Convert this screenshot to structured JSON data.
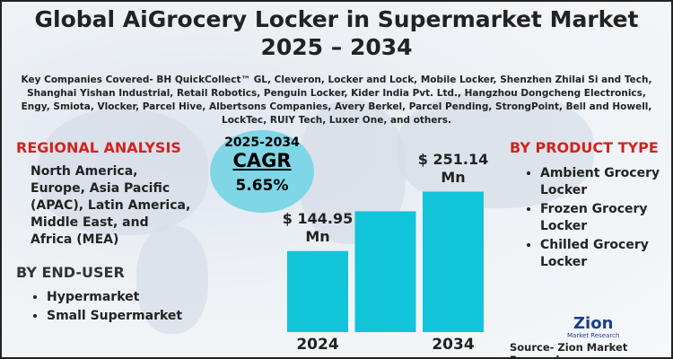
{
  "title": "Global AiGrocery Locker in Supermarket Market 2025 – 2034",
  "key_companies": "Key Companies Covered- BH QuickCollect™ GL, Cleveron, Locker and Lock, Mobile Locker, Shenzhen Zhilai Si and Tech, Shanghai Yishan Industrial, Retail Robotics, Penguin Locker, Kider India Pvt. Ltd., Hangzhou Dongcheng Electronics, Engy, Smiota, Vlocker, Parcel Hive, Albertsons Companies, Avery Berkel, Parcel Pending, StrongPoint, Bell and Howell, LockTec, RUIY Tech, Luxer One, and others.",
  "regional_analysis": {
    "heading": "REGIONAL ANALYSIS",
    "text": "North America, Europe, Asia Pacific (APAC), Latin America, Middle East, and Africa (MEA)"
  },
  "cagr": {
    "period": "2025-2034",
    "label": "CAGR",
    "value": "5.65%"
  },
  "end_user": {
    "heading": "BY END-USER",
    "items": [
      "Hypermarket",
      "Small Supermarket"
    ]
  },
  "product_type": {
    "heading": "BY PRODUCT TYPE",
    "items": [
      "Ambient Grocery Locker",
      "Frozen Grocery Locker",
      "Chilled Grocery Locker"
    ]
  },
  "logo": {
    "name": "Zion",
    "subtitle": "Market Research"
  },
  "source": "Source- Zion Market Research",
  "chart_data": {
    "type": "bar",
    "categories": [
      "2024",
      null,
      "2034"
    ],
    "values": [
      144.95,
      216,
      251.14
    ],
    "value_labels": [
      "$ 144.95 Mn",
      null,
      "$ 251.14 Mn"
    ],
    "color": "#12c4da",
    "ylim": [
      0,
      260
    ]
  }
}
